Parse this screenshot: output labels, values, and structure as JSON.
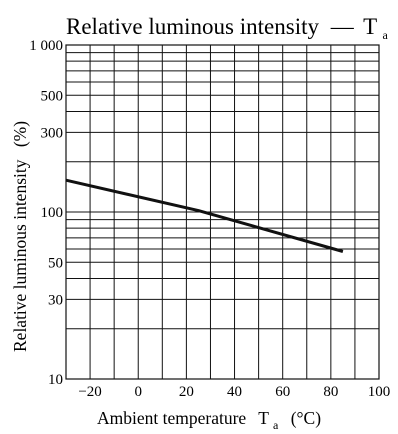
{
  "chart_data": {
    "type": "line",
    "title": "Relative luminous intensity",
    "title_dash": "—",
    "title_symbol": "T",
    "title_symbol_sub": "a",
    "xlabel": "Ambient temperature",
    "xlabel_symbol": "T",
    "xlabel_symbol_sub": "a",
    "xlabel_unit": "(°C)",
    "ylabel": "Relative luminous intensity",
    "ylabel_unit": "(%)",
    "x_scale": "linear",
    "y_scale": "log",
    "xlim": [
      -30,
      100
    ],
    "ylim": [
      10,
      1000
    ],
    "x_ticks": [
      -20,
      0,
      20,
      40,
      60,
      80,
      100
    ],
    "x_tick_labels": [
      "−20",
      "0",
      "20",
      "40",
      "60",
      "80",
      "100"
    ],
    "y_ticks": [
      10,
      30,
      50,
      100,
      300,
      500,
      1000
    ],
    "y_tick_labels": [
      "10",
      "30",
      "50",
      "100",
      "300",
      "500",
      "1 000"
    ],
    "grid": true,
    "x_grid": [
      -20,
      -10,
      0,
      10,
      20,
      30,
      40,
      50,
      60,
      70,
      80,
      90
    ],
    "y_grid": [
      20,
      30,
      40,
      50,
      60,
      70,
      80,
      90,
      100,
      200,
      300,
      400,
      500,
      600,
      700,
      800,
      900
    ],
    "series": [
      {
        "x": [
          -30,
          25,
          85
        ],
        "y": [
          155,
          102,
          58
        ]
      }
    ]
  }
}
